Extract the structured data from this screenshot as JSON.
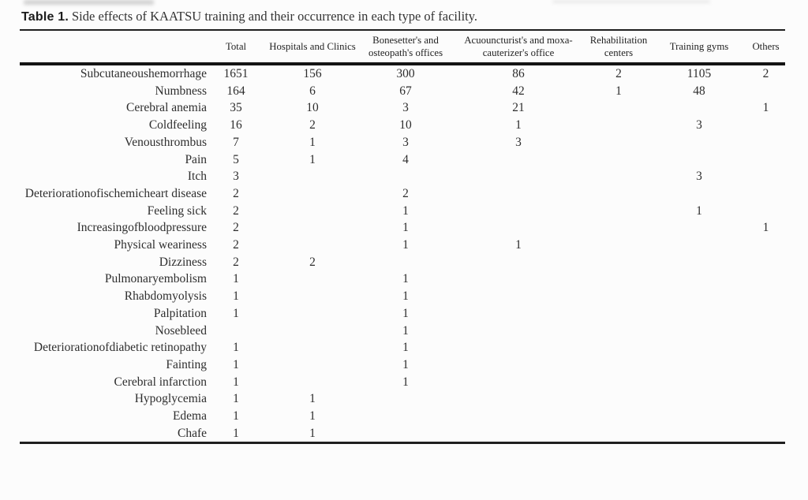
{
  "caption": {
    "label": "Table 1.",
    "text": "Side effects of KAATSU training and their occurrence in each type of facility."
  },
  "colors": {
    "background": "#fcfcfc",
    "text": "#2e2e2e",
    "rule": "#1f1f1f"
  },
  "table": {
    "columns": [
      "",
      "Total",
      "Hospitals and Clinics",
      "Bonesetter's and osteopath's offices",
      "Acuouncturist's and moxa-cauterizer's office",
      "Rehabilitation centers",
      "Training gyms",
      "Others"
    ],
    "rows": [
      {
        "label": "Subcutaneoushemorrhage",
        "values": [
          "1651",
          "156",
          "300",
          "86",
          "2",
          "1105",
          "2"
        ]
      },
      {
        "label": "Numbness",
        "values": [
          "164",
          "6",
          "67",
          "42",
          "1",
          "48",
          ""
        ]
      },
      {
        "label": "Cerebral anemia",
        "values": [
          "35",
          "10",
          "3",
          "21",
          "",
          "",
          "1"
        ]
      },
      {
        "label": "Coldfeeling",
        "values": [
          "16",
          "2",
          "10",
          "1",
          "",
          "3",
          ""
        ]
      },
      {
        "label": "Venousthrombus",
        "values": [
          "7",
          "1",
          "3",
          "3",
          "",
          "",
          ""
        ]
      },
      {
        "label": "Pain",
        "values": [
          "5",
          "1",
          "4",
          "",
          "",
          "",
          ""
        ]
      },
      {
        "label": "Itch",
        "values": [
          "3",
          "",
          "",
          "",
          "",
          "3",
          ""
        ]
      },
      {
        "label": "Deteriorationofischemicheart disease",
        "values": [
          "2",
          "",
          "2",
          "",
          "",
          "",
          ""
        ]
      },
      {
        "label": "Feeling sick",
        "values": [
          "2",
          "",
          "1",
          "",
          "",
          "1",
          ""
        ]
      },
      {
        "label": "Increasingofbloodpressure",
        "values": [
          "2",
          "",
          "1",
          "",
          "",
          "",
          "1"
        ]
      },
      {
        "label": "Physical weariness",
        "values": [
          "2",
          "",
          "1",
          "1",
          "",
          "",
          ""
        ]
      },
      {
        "label": "Dizziness",
        "values": [
          "2",
          "2",
          "",
          "",
          "",
          "",
          ""
        ]
      },
      {
        "label": "Pulmonaryembolism",
        "values": [
          "1",
          "",
          "1",
          "",
          "",
          "",
          ""
        ]
      },
      {
        "label": "Rhabdomyolysis",
        "values": [
          "1",
          "",
          "1",
          "",
          "",
          "",
          ""
        ]
      },
      {
        "label": "Palpitation",
        "values": [
          "1",
          "",
          "1",
          "",
          "",
          "",
          ""
        ]
      },
      {
        "label": "Nosebleed",
        "values": [
          "",
          "",
          "1",
          "",
          "",
          "",
          ""
        ]
      },
      {
        "label": "Deteriorationofdiabetic retinopathy",
        "values": [
          "1",
          "",
          "1",
          "",
          "",
          "",
          ""
        ]
      },
      {
        "label": "Fainting",
        "values": [
          "1",
          "",
          "1",
          "",
          "",
          "",
          ""
        ]
      },
      {
        "label": "Cerebral infarction",
        "values": [
          "1",
          "",
          "1",
          "",
          "",
          "",
          ""
        ]
      },
      {
        "label": "Hypoglycemia",
        "values": [
          "1",
          "1",
          "",
          "",
          "",
          "",
          ""
        ]
      },
      {
        "label": "Edema",
        "values": [
          "1",
          "1",
          "",
          "",
          "",
          "",
          ""
        ]
      },
      {
        "label": "Chafe",
        "values": [
          "1",
          "1",
          "",
          "",
          "",
          "",
          ""
        ]
      }
    ]
  }
}
